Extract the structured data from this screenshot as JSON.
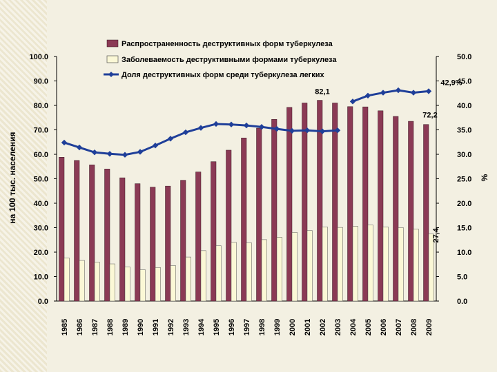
{
  "chart_data": {
    "type": "bar",
    "categories": [
      "1985",
      "1986",
      "1987",
      "1988",
      "1989",
      "1990",
      "1991",
      "1992",
      "1993",
      "1994",
      "1995",
      "1996",
      "1997",
      "1998",
      "1999",
      "2000",
      "2001",
      "2002",
      "2003",
      "2004",
      "2005",
      "2006",
      "2007",
      "2008",
      "2009"
    ],
    "ylabel": "на 100 тыс. населения",
    "y2label": "%",
    "ylim": [
      0,
      100
    ],
    "y2lim": [
      0,
      50
    ],
    "yticks": [
      "0.0",
      "10.0",
      "20.0",
      "30.0",
      "40.0",
      "50.0",
      "60.0",
      "70.0",
      "80.0",
      "90.0",
      "100.0"
    ],
    "y2ticks": [
      "0.0",
      "5.0",
      "10.0",
      "15.0",
      "20.0",
      "25.0",
      "30.0",
      "35.0",
      "40.0",
      "45.0",
      "50.0"
    ],
    "grid": false,
    "legend_position": "top",
    "series": [
      {
        "name": "Распространенность деструктивных форм туберкулеза",
        "type": "bar",
        "axis": "left",
        "color": "#8b3a55",
        "values": [
          58.8,
          57.5,
          55.7,
          54.0,
          50.4,
          48.0,
          46.6,
          47.0,
          49.4,
          52.8,
          57.0,
          61.7,
          66.7,
          70.7,
          74.3,
          79.2,
          81.0,
          82.1,
          81.0,
          79.5,
          79.4,
          77.8,
          75.5,
          73.5,
          72.2
        ]
      },
      {
        "name": "Заболеваемость деструктивными формами туберкулеза",
        "type": "bar",
        "axis": "left",
        "color": "#fbf8d6",
        "values": [
          17.6,
          16.6,
          15.9,
          15.2,
          13.9,
          12.8,
          13.7,
          14.5,
          18.0,
          20.6,
          22.6,
          24.0,
          23.8,
          25.1,
          26.1,
          28.1,
          28.8,
          30.3,
          30.1,
          30.6,
          31.1,
          30.3,
          30.0,
          29.4,
          27.4
        ]
      },
      {
        "name": "Доля деструктивных форм среди туберкулеза легких",
        "type": "line",
        "axis": "right",
        "color": "#1f3f99",
        "values": [
          32.4,
          31.4,
          30.4,
          30.1,
          29.9,
          30.5,
          31.8,
          33.2,
          34.5,
          35.4,
          36.2,
          36.1,
          35.9,
          35.6,
          35.2,
          34.8,
          34.9,
          34.7,
          34.9,
          40.8,
          42.0,
          42.6,
          43.1,
          42.6,
          42.9
        ]
      }
    ],
    "annotations": {
      "peak_prevalence": "82,1",
      "last_prevalence": "72,2",
      "last_incidence": "27,4",
      "last_share": "42,9%"
    }
  }
}
